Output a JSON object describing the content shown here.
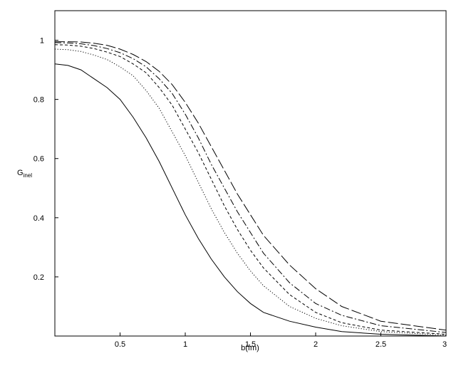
{
  "chart_data": {
    "type": "line",
    "xlabel": "b(fm)",
    "ylabel": "G",
    "ylabel_subscript": "inel",
    "xlim": [
      0,
      3
    ],
    "ylim": [
      0,
      1.1
    ],
    "xticks": [
      "0.5",
      "1",
      "1.5",
      "2",
      "2.5",
      "3"
    ],
    "yticks": [
      "0.2",
      "0.4",
      "0.6",
      "0.8",
      "1"
    ],
    "grid": false,
    "legend": "none",
    "series": [
      {
        "style": "solid",
        "x": [
          0,
          0.1,
          0.2,
          0.3,
          0.4,
          0.5,
          0.6,
          0.7,
          0.8,
          0.9,
          1.0,
          1.1,
          1.2,
          1.3,
          1.4,
          1.5,
          1.6,
          1.8,
          2.0,
          2.2,
          2.5,
          3.0
        ],
        "y": [
          0.92,
          0.915,
          0.9,
          0.87,
          0.84,
          0.8,
          0.74,
          0.67,
          0.59,
          0.5,
          0.41,
          0.33,
          0.26,
          0.2,
          0.15,
          0.11,
          0.08,
          0.05,
          0.03,
          0.015,
          0.006,
          0.0
        ]
      },
      {
        "style": "dotted",
        "x": [
          0,
          0.1,
          0.2,
          0.3,
          0.4,
          0.5,
          0.6,
          0.7,
          0.8,
          0.9,
          1.0,
          1.1,
          1.2,
          1.3,
          1.4,
          1.5,
          1.6,
          1.8,
          2.0,
          2.2,
          2.5,
          3.0
        ],
        "y": [
          0.97,
          0.968,
          0.962,
          0.95,
          0.935,
          0.91,
          0.88,
          0.83,
          0.77,
          0.69,
          0.61,
          0.52,
          0.43,
          0.35,
          0.28,
          0.22,
          0.17,
          0.1,
          0.06,
          0.035,
          0.015,
          0.003
        ]
      },
      {
        "style": "short-dash",
        "x": [
          0,
          0.1,
          0.2,
          0.3,
          0.4,
          0.5,
          0.6,
          0.7,
          0.8,
          0.9,
          1.0,
          1.1,
          1.2,
          1.3,
          1.4,
          1.5,
          1.6,
          1.8,
          2.0,
          2.2,
          2.5,
          3.0
        ],
        "y": [
          0.985,
          0.984,
          0.98,
          0.972,
          0.96,
          0.945,
          0.92,
          0.89,
          0.84,
          0.78,
          0.7,
          0.62,
          0.53,
          0.44,
          0.36,
          0.29,
          0.23,
          0.14,
          0.08,
          0.045,
          0.02,
          0.006
        ]
      },
      {
        "style": "dash-dot",
        "x": [
          0,
          0.1,
          0.2,
          0.3,
          0.4,
          0.5,
          0.6,
          0.7,
          0.8,
          0.9,
          1.0,
          1.1,
          1.2,
          1.3,
          1.4,
          1.5,
          1.6,
          1.8,
          2.0,
          2.2,
          2.5,
          3.0
        ],
        "y": [
          0.992,
          0.991,
          0.988,
          0.982,
          0.972,
          0.958,
          0.938,
          0.91,
          0.87,
          0.82,
          0.75,
          0.67,
          0.58,
          0.5,
          0.42,
          0.35,
          0.28,
          0.18,
          0.11,
          0.07,
          0.035,
          0.012
        ]
      },
      {
        "style": "long-dash",
        "x": [
          0,
          0.1,
          0.2,
          0.3,
          0.4,
          0.5,
          0.6,
          0.7,
          0.8,
          0.9,
          1.0,
          1.1,
          1.2,
          1.3,
          1.4,
          1.5,
          1.6,
          1.8,
          2.0,
          2.2,
          2.5,
          3.0
        ],
        "y": [
          0.995,
          0.995,
          0.994,
          0.99,
          0.983,
          0.97,
          0.952,
          0.928,
          0.895,
          0.85,
          0.79,
          0.72,
          0.64,
          0.56,
          0.48,
          0.41,
          0.34,
          0.24,
          0.16,
          0.1,
          0.05,
          0.02
        ]
      }
    ]
  }
}
